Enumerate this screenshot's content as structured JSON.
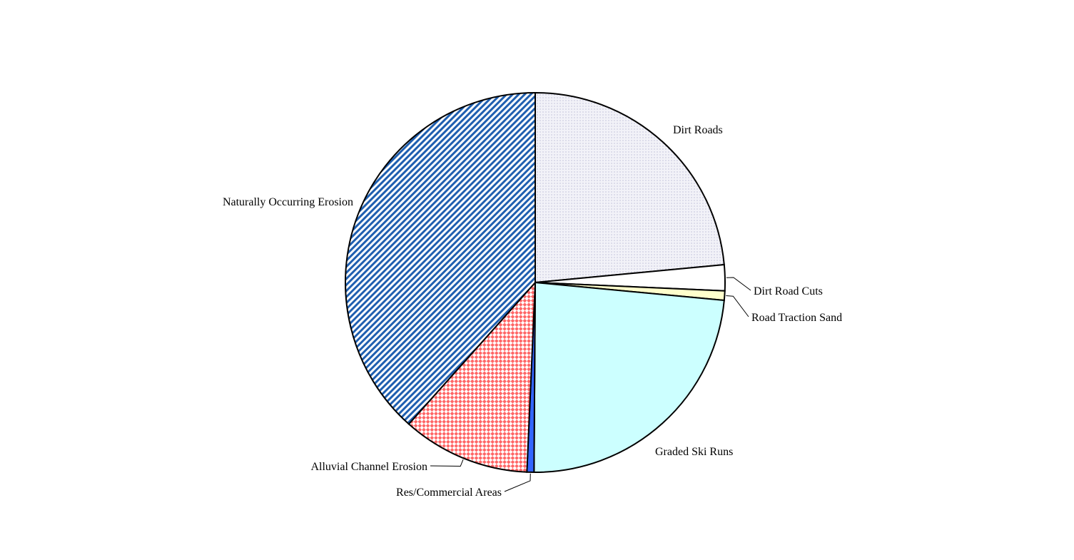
{
  "chart_data": {
    "type": "pie",
    "title": "",
    "start_angle_deg": 0,
    "direction": "clockwise",
    "legend": "none",
    "slices": [
      {
        "label": "Dirt Roads",
        "value": 23.5,
        "color": "#f2f2f8",
        "pattern": "dots",
        "pattern_color": "#a6a6c8"
      },
      {
        "label": "Dirt Road Cuts",
        "value": 2.2,
        "color": "#ffffff",
        "pattern": "none",
        "pattern_color": "#ffffff"
      },
      {
        "label": "Road Traction Sand",
        "value": 0.8,
        "color": "#ffffcc",
        "pattern": "none",
        "pattern_color": "#ffffcc"
      },
      {
        "label": "Graded Ski Runs",
        "value": 23.6,
        "color": "#ccffff",
        "pattern": "none",
        "pattern_color": "#ccffff"
      },
      {
        "label": "Res/Commercial Areas",
        "value": 0.6,
        "color": "#3366ff",
        "pattern": "none",
        "pattern_color": "#3366ff"
      },
      {
        "label": "Alluvial Channel Erosion",
        "value": 10.9,
        "color": "#ffffff",
        "pattern": "checker",
        "pattern_color": "#ff6666"
      },
      {
        "label": "Naturally Occurring Erosion",
        "value": 38.4,
        "color": "#ffffff",
        "pattern": "diagonal",
        "pattern_color": "#1f5fb0"
      }
    ]
  }
}
